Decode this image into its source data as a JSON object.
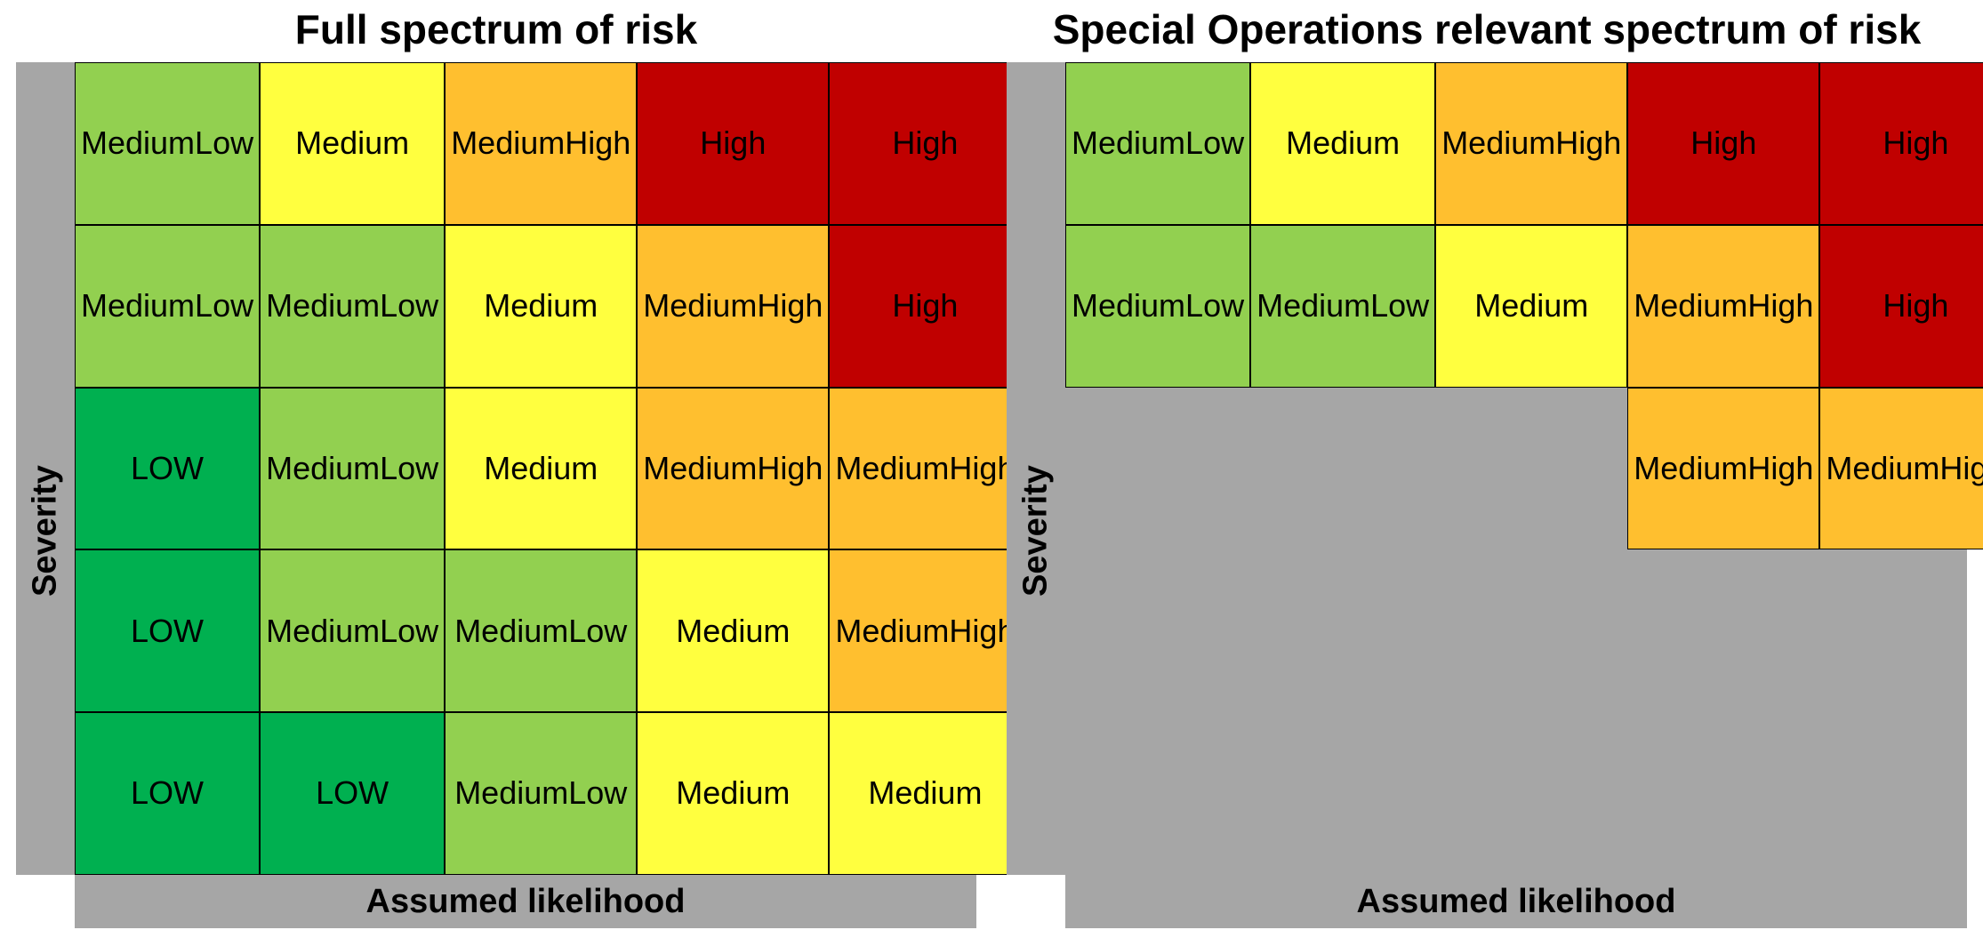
{
  "colors": {
    "LOW": "#00b050",
    "Medium Low": "#92d050",
    "Medium": "#ffff3f",
    "Medium High": "#ffbf2f",
    "High": "#c00000",
    "axis_bar": "#a6a6a6"
  },
  "panels": [
    {
      "title": "Full spectrum of risk",
      "ylabel": "Severity",
      "xlabel": "Assumed likelihood",
      "rows": [
        [
          "Medium\nLow",
          "Medium",
          "Medium\nHigh",
          "High",
          "High"
        ],
        [
          "Medium\nLow",
          "Medium\nLow",
          "Medium",
          "Medium\nHigh",
          "High"
        ],
        [
          "LOW",
          "Medium\nLow",
          "Medium",
          "Medium\nHigh",
          "Medium\nHigh"
        ],
        [
          "LOW",
          "Medium\nLow",
          "Medium\nLow",
          "Medium",
          "Medium\nHigh"
        ],
        [
          "LOW",
          "LOW",
          "Medium\nLow",
          "Medium",
          "Medium"
        ]
      ]
    },
    {
      "title": "Special Operations relevant spectrum of risk",
      "ylabel": "Severity",
      "xlabel": "Assumed likelihood",
      "rows": [
        [
          "Medium\nLow",
          "Medium",
          "Medium\nHigh",
          "High",
          "High"
        ],
        [
          "Medium\nLow",
          "Medium\nLow",
          "Medium",
          "Medium\nHigh",
          "High"
        ],
        [
          "",
          "",
          "",
          "Medium\nHigh",
          "Medium\nHigh"
        ],
        [
          "",
          "",
          "",
          "",
          ""
        ],
        [
          "",
          "",
          "",
          "",
          ""
        ]
      ]
    }
  ]
}
